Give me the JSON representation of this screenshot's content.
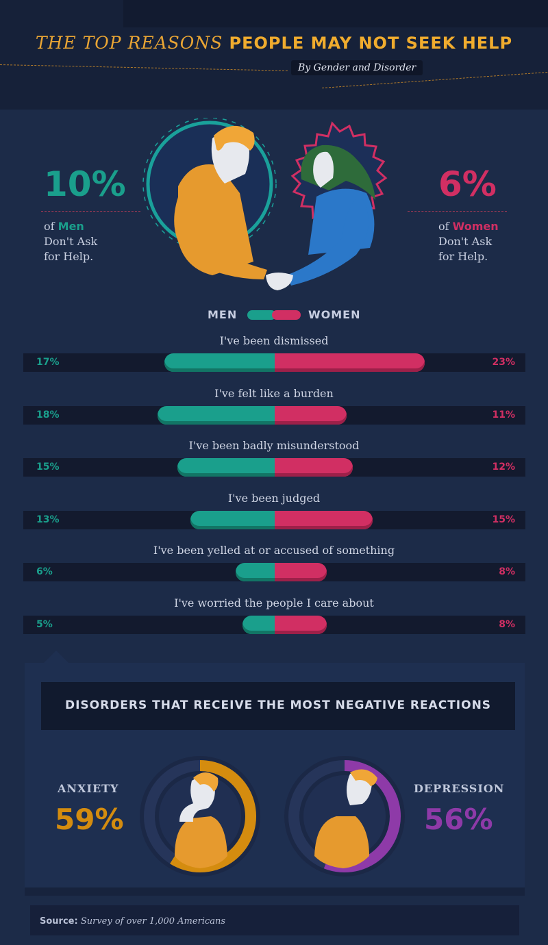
{
  "header": {
    "title_part1": "THE TOP REASONS",
    "title_part2": "PEOPLE MAY NOT SEEK HELP",
    "subtitle": "By Gender and Disorder"
  },
  "stats": {
    "men": {
      "value": "10%",
      "prefix": "of",
      "group": "Men",
      "line2": "Don't Ask",
      "line3": "for Help."
    },
    "women": {
      "value": "6%",
      "prefix": "of",
      "group": "Women",
      "line2": "Don't Ask",
      "line3": "for Help."
    }
  },
  "legend": {
    "men": "MEN",
    "women": "WOMEN"
  },
  "colors": {
    "men": "#1a9f8c",
    "women": "#d12f63",
    "anxiety": "#d48c0f",
    "depression": "#8e3aa8",
    "accent": "#f0ac2e"
  },
  "chart_data": [
    {
      "type": "bar",
      "categories": [
        "I've been dismissed",
        "I've felt like a burden",
        "I've been badly misunderstood",
        "I've been judged",
        "I've been yelled at or accused of something",
        "I've worried the people I care about"
      ],
      "series": [
        {
          "name": "MEN",
          "values": [
            17,
            18,
            15,
            13,
            6,
            5
          ],
          "labels": [
            "17%",
            "18%",
            "15%",
            "13%",
            "6%",
            "5%"
          ]
        },
        {
          "name": "WOMEN",
          "values": [
            23,
            11,
            12,
            15,
            8,
            8
          ],
          "labels": [
            "23%",
            "11%",
            "12%",
            "15%",
            "8%",
            "8%"
          ]
        }
      ]
    },
    {
      "type": "pie",
      "title": "DISORDERS THAT RECEIVE THE MOST NEGATIVE REACTIONS",
      "categories": [
        "ANXIETY",
        "DEPRESSION"
      ],
      "values": [
        59,
        56
      ],
      "labels": [
        "59%",
        "56%"
      ]
    }
  ],
  "source": {
    "label": "Source:",
    "text": "Survey of over 1,000 Americans"
  }
}
